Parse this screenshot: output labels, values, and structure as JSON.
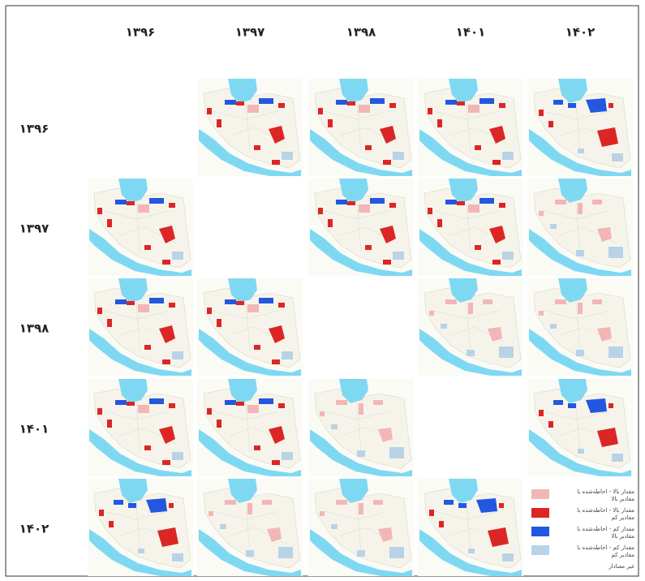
{
  "header": {
    "columns": [
      "۱۳۹۶",
      "۱۳۹۷",
      "۱۳۹۸",
      "۱۴۰۱",
      "۱۴۰۲"
    ],
    "rows": [
      "۱۳۹۶",
      "۱۳۹۷",
      "۱۳۹۸",
      "۱۴۰۱",
      "۱۴۰۲"
    ]
  },
  "legend": [
    {
      "lines": [
        "مقدار بالا - احاطه‌شده با",
        "مقادیر بالا"
      ],
      "color": "#f2b6b6"
    },
    {
      "lines": [
        "مقدار بالا - احاطه‌شده با",
        "مقادیر کم"
      ],
      "color": "#dc2626"
    },
    {
      "lines": [
        "مقدار کم - احاطه‌شده با",
        "مقادیر بالا"
      ],
      "color": "#2457e0"
    },
    {
      "lines": [
        "مقدار کم - احاطه‌شده با",
        "مقادیر کم"
      ],
      "color": "#b9d3e6"
    },
    {
      "lines": [
        "غیر معنادار"
      ],
      "color": "#ffffff"
    }
  ]
}
